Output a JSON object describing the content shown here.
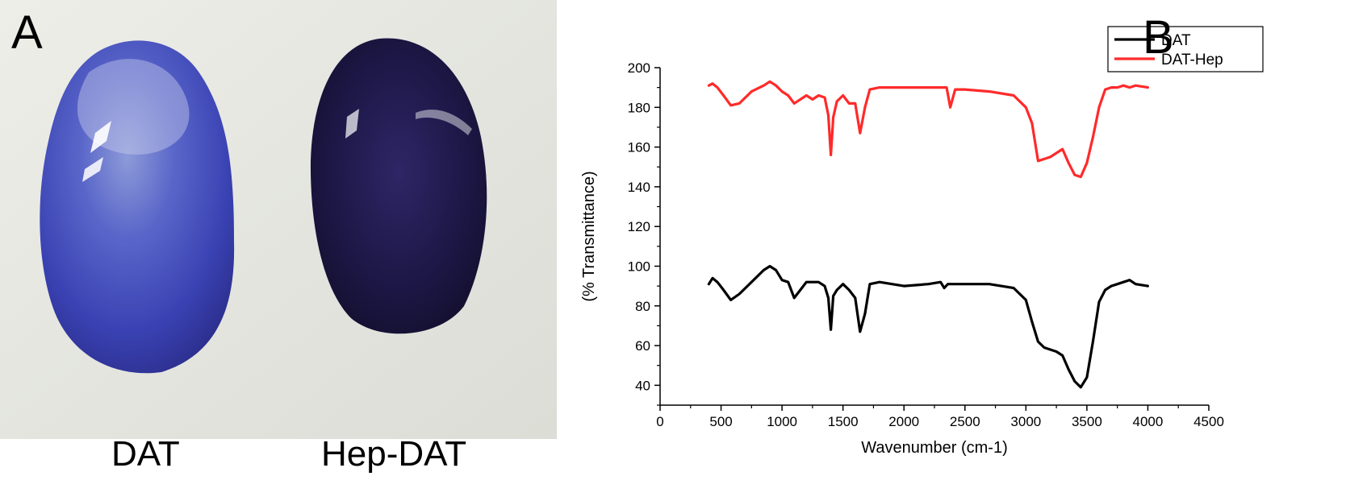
{
  "panel_a": {
    "letter": "A",
    "samples": [
      {
        "label": "DAT"
      },
      {
        "label": "Hep-DAT"
      }
    ]
  },
  "panel_b": {
    "letter": "B"
  },
  "chart_data": {
    "type": "line",
    "title": "",
    "xlabel": "Wavenumber (cm-1)",
    "ylabel": "(% Transmittance)",
    "xlim": [
      0,
      4500
    ],
    "ylim": [
      30,
      200
    ],
    "xticks": [
      0,
      500,
      1000,
      1500,
      2000,
      2500,
      3000,
      3500,
      4000,
      4500
    ],
    "yticks": [
      40,
      60,
      80,
      100,
      120,
      140,
      160,
      180,
      200
    ],
    "grid": false,
    "legend": "top-right",
    "series": [
      {
        "name": "DAT",
        "color": "#000000",
        "x": [
          400,
          430,
          470,
          520,
          580,
          650,
          750,
          850,
          900,
          950,
          1000,
          1050,
          1100,
          1150,
          1200,
          1300,
          1350,
          1380,
          1400,
          1420,
          1450,
          1500,
          1550,
          1600,
          1640,
          1680,
          1720,
          1800,
          2000,
          2200,
          2300,
          2330,
          2360,
          2400,
          2500,
          2700,
          2900,
          3000,
          3050,
          3100,
          3150,
          3250,
          3300,
          3350,
          3400,
          3450,
          3500,
          3550,
          3600,
          3650,
          3700,
          3750,
          3800,
          3850,
          3900,
          4000
        ],
        "y": [
          91,
          94,
          92,
          88,
          83,
          86,
          92,
          98,
          100,
          98,
          93,
          92,
          84,
          88,
          92,
          92,
          90,
          84,
          68,
          85,
          88,
          91,
          88,
          84,
          67,
          76,
          91,
          92,
          90,
          91,
          92,
          89,
          91,
          91,
          91,
          91,
          89,
          83,
          72,
          62,
          59,
          57,
          55,
          48,
          42,
          39,
          44,
          62,
          82,
          88,
          90,
          91,
          92,
          93,
          91,
          90
        ]
      },
      {
        "name": "DAT-Hep",
        "color": "#ff2a2a",
        "x": [
          400,
          430,
          470,
          520,
          580,
          650,
          750,
          850,
          900,
          950,
          1000,
          1050,
          1100,
          1150,
          1200,
          1250,
          1300,
          1350,
          1380,
          1400,
          1420,
          1450,
          1500,
          1550,
          1600,
          1640,
          1680,
          1720,
          1800,
          2000,
          2200,
          2350,
          2380,
          2420,
          2500,
          2700,
          2900,
          3000,
          3050,
          3100,
          3150,
          3200,
          3250,
          3300,
          3350,
          3400,
          3450,
          3500,
          3550,
          3600,
          3650,
          3700,
          3750,
          3800,
          3850,
          3900,
          4000
        ],
        "y": [
          191,
          192,
          190,
          186,
          181,
          182,
          188,
          191,
          193,
          191,
          188,
          186,
          182,
          184,
          186,
          184,
          186,
          185,
          176,
          156,
          175,
          183,
          186,
          182,
          182,
          167,
          180,
          189,
          190,
          190,
          190,
          190,
          180,
          189,
          189,
          188,
          186,
          180,
          172,
          153,
          154,
          155,
          157,
          159,
          152,
          146,
          145,
          152,
          165,
          180,
          189,
          190,
          190,
          191,
          190,
          191,
          190
        ]
      }
    ]
  }
}
